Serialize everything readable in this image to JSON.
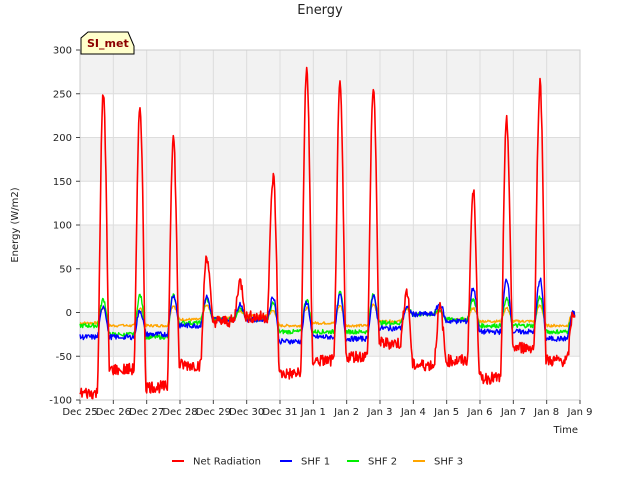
{
  "chart_data": {
    "type": "line",
    "title": "Energy",
    "site_label": "SI_met",
    "xlabel": "Time",
    "ylabel": "Energy (W/m2)",
    "ylim": [
      -100,
      300
    ],
    "yticks": [
      -100,
      -50,
      0,
      50,
      100,
      150,
      200,
      250,
      300
    ],
    "xlim": [
      0,
      15
    ],
    "xticks": [
      0,
      1,
      2,
      3,
      4,
      5,
      6,
      7,
      8,
      9,
      10,
      11,
      12,
      13,
      14,
      15
    ],
    "xtick_labels": [
      "Dec 25",
      "Dec 26",
      "Dec 27",
      "Dec 28",
      "Dec 29",
      "Dec 30",
      "Dec 31",
      "Jan 1",
      "Jan 2",
      "Jan 3",
      "Jan 4",
      "Jan 5",
      "Jan 6",
      "Jan 7",
      "Jan 8",
      "Jan 9"
    ],
    "grid": true,
    "background_bands": true,
    "legend_position": "bottom",
    "daily_x": [
      0.7,
      1.8,
      2.8,
      3.8,
      4.8,
      5.8,
      6.8,
      7.8,
      8.8,
      9.8,
      10.8,
      11.8,
      12.8,
      13.8,
      14.8
    ],
    "series": [
      {
        "name": "Net Radiation",
        "color": "#ff0000",
        "night": [
          -92,
          -65,
          -85,
          -60,
          -10,
          -5,
          -70,
          -55,
          -50,
          -35,
          -60,
          -55,
          -75,
          -40,
          -55
        ],
        "peak": [
          250,
          235,
          200,
          65,
          35,
          155,
          280,
          258,
          257,
          25,
          5,
          138,
          218,
          262,
          0
        ]
      },
      {
        "name": "SHF 1",
        "color": "#0000ff",
        "night": [
          -28,
          -28,
          -25,
          -15,
          -8,
          -8,
          -33,
          -28,
          -30,
          -18,
          -2,
          -10,
          -22,
          -22,
          -30
        ],
        "peak": [
          8,
          2,
          20,
          18,
          10,
          18,
          12,
          20,
          18,
          5,
          10,
          28,
          38,
          38,
          0
        ]
      },
      {
        "name": "SHF 2",
        "color": "#00ee00",
        "night": [
          -15,
          -25,
          -28,
          -12,
          -8,
          -8,
          -22,
          -22,
          -22,
          -12,
          -2,
          -8,
          -15,
          -15,
          -22
        ],
        "peak": [
          15,
          20,
          20,
          15,
          5,
          10,
          15,
          22,
          20,
          5,
          3,
          15,
          15,
          18,
          0
        ]
      },
      {
        "name": "SHF 3",
        "color": "#ffa500",
        "night": [
          -12,
          -15,
          -15,
          -8,
          -6,
          -4,
          -15,
          -12,
          -15,
          -10,
          -2,
          -8,
          -10,
          -10,
          -15
        ],
        "peak": [
          5,
          5,
          8,
          8,
          2,
          2,
          5,
          8,
          10,
          3,
          2,
          5,
          5,
          8,
          0
        ]
      }
    ]
  }
}
